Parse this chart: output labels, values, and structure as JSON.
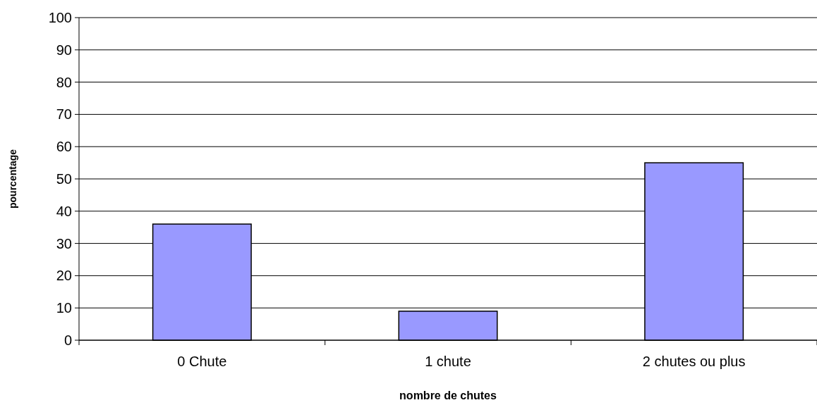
{
  "chart_data": {
    "type": "bar",
    "xlabel": "nombre de chutes",
    "ylabel": "pourcentage",
    "categories": [
      "0 Chute",
      "1 chute",
      "2 chutes ou plus"
    ],
    "values": [
      36,
      9,
      55
    ],
    "color": "#9999ff",
    "ylim": [
      0,
      100
    ],
    "yticks": [
      0,
      10,
      20,
      30,
      40,
      50,
      60,
      70,
      80,
      90,
      100
    ],
    "grid": "y"
  }
}
